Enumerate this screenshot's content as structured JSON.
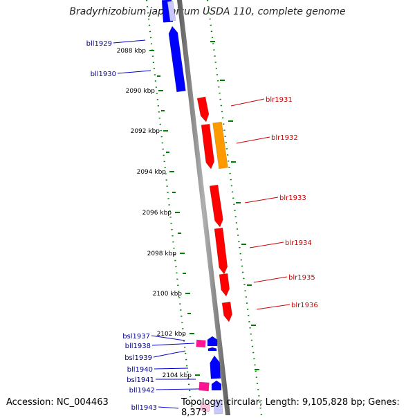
{
  "title": "Bradyrhizobium japonicum USDA 110, complete genome",
  "footer": {
    "accession": "Accession: NC_004463",
    "topology": "Topology: circular; Length: 9,105,828 bp; Genes: 8,373"
  },
  "colors": {
    "minus_strand_gene": "#0000ff",
    "plus_strand_gene": "#ff0000",
    "orange_gene": "#ff9900",
    "magenta_gene": "#ff1493",
    "minus_label": "#00008b",
    "plus_label": "#cc0000",
    "ruler_tick": "#008000",
    "backbone": "#808080"
  },
  "ruler_labels": [
    "2088 kbp",
    "2090 kbp",
    "2092 kbp",
    "2094 kbp",
    "2096 kbp",
    "2098 kbp",
    "2100 kbp",
    "2102 kbp",
    "2104 kbp"
  ],
  "genes_minus": [
    "bll1929",
    "bll1930",
    "bsl1937",
    "bll1938",
    "bsl1939",
    "bll1940",
    "bsl1941",
    "bll1942",
    "bll1943"
  ],
  "genes_plus": [
    "blr1931",
    "blr1932",
    "blr1933",
    "blr1934",
    "blr1935",
    "blr1936"
  ]
}
